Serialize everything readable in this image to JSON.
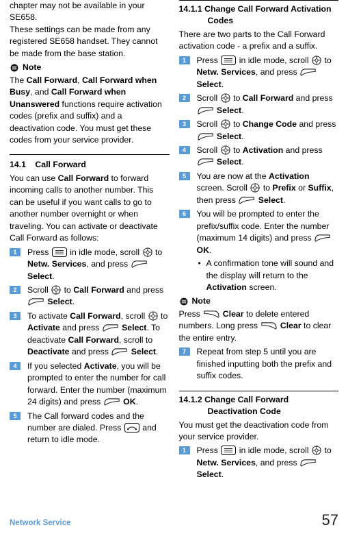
{
  "colors": {
    "accent": "#5b9bd5",
    "text": "#000000",
    "background": "#ffffff",
    "step_badge_bg": "#5b9bd5",
    "step_badge_fg": "#ffffff",
    "footer_link": "#5b9bd5"
  },
  "typography": {
    "body_font_size_pt": 9,
    "body_line_height": 1.42,
    "step_badge_font_size_pt": 7,
    "footer_left_font_size_pt": 8.5,
    "footer_right_font_size_pt": 16,
    "font_family": "Arial"
  },
  "left_column": {
    "intro_paragraphs": [
      "chapter may not be available in your SE658.",
      "These settings can be made from any registered SE658 handset. They cannot be made from the base station."
    ],
    "note_label": "Note",
    "note_body": "The **Call Forward**, **Call Forward when Busy**, and **Call Forward when Unanswered** functions require activation codes (prefix and suffix) and a deactivation code. You must get these codes from your service provider.",
    "section": {
      "number": "14.1",
      "title": "Call Forward",
      "intro": "You can use **Call Forward** to forward incoming calls to another number. This can be useful if you want calls to go to another number overnight or when traveling. You can activate or deactivate Call Forward as follows:",
      "steps": [
        "Press {menu} in idle mode, scroll {nav} to **Netw. Services**, and press {soft_l} **Select**.",
        "Scroll {nav} to **Call Forward** and press {soft_l} **Select**.",
        "To activate **Call Forward**, scroll {nav} to **Activate** and press {soft_l} **Select**. To deactivate **Call Forward**, scroll to **Deactivate** and press {soft_l} **Select**.",
        "If you selected **Activate**, you will be prompted to enter the number for call forward. Enter the number (maximum 24 digits) and press {soft_l} **OK**.",
        "The Call forward codes and the number are dialed. Press {end} and return to idle mode."
      ]
    }
  },
  "right_column": {
    "subsection1": {
      "number": "14.1.1",
      "title": "Change Call Forward Activation Codes",
      "intro": "There are two parts to the Call Forward activation code - a prefix and a suffix.",
      "steps": [
        "Press {menu} in idle mode, scroll {nav} to **Netw. Services**, and press {soft_l} **Select**.",
        "Scroll {nav} to **Call Forward** and press {soft_l} **Select**.",
        "Scroll {nav} to **Change Code** and press {soft_l} **Select**.",
        "Scroll {nav} to **Activation** and press {soft_l} **Select**.",
        "You are now at the **Activation** screen. Scroll {nav} to **Prefix** or **Suffix**, then press {soft_l} **Select**.",
        "You will be prompted to enter the prefix/suffix code. Enter the number (maximum 14 digits) and press {soft_l} **OK**."
      ],
      "step6_sub": "A confirmation tone will sound and the display will return to the **Activation** screen.",
      "note_label": "Note",
      "note_body": "Press {soft_r} **Clear** to delete entered numbers. Long press {soft_r} **Clear** to clear the entire entry.",
      "step7": "Repeat from step 5 until you are finished inputting both the prefix and suffix codes."
    },
    "subsection2": {
      "number": "14.1.2",
      "title": "Change Call Forward Deactivation Code",
      "intro": "You must get the deactivation code from your service provider.",
      "steps": [
        "Press {menu} in idle mode, scroll {nav} to **Netw. Services**, and press {soft_l} **Select**."
      ]
    }
  },
  "footer": {
    "left": "Network Service",
    "page_number": "57"
  },
  "icons": {
    "menu": "menu-key-icon",
    "nav": "nav-key-icon",
    "soft_l": "left-softkey-icon",
    "soft_r": "right-softkey-icon",
    "end": "end-key-icon",
    "note": "note-icon"
  }
}
